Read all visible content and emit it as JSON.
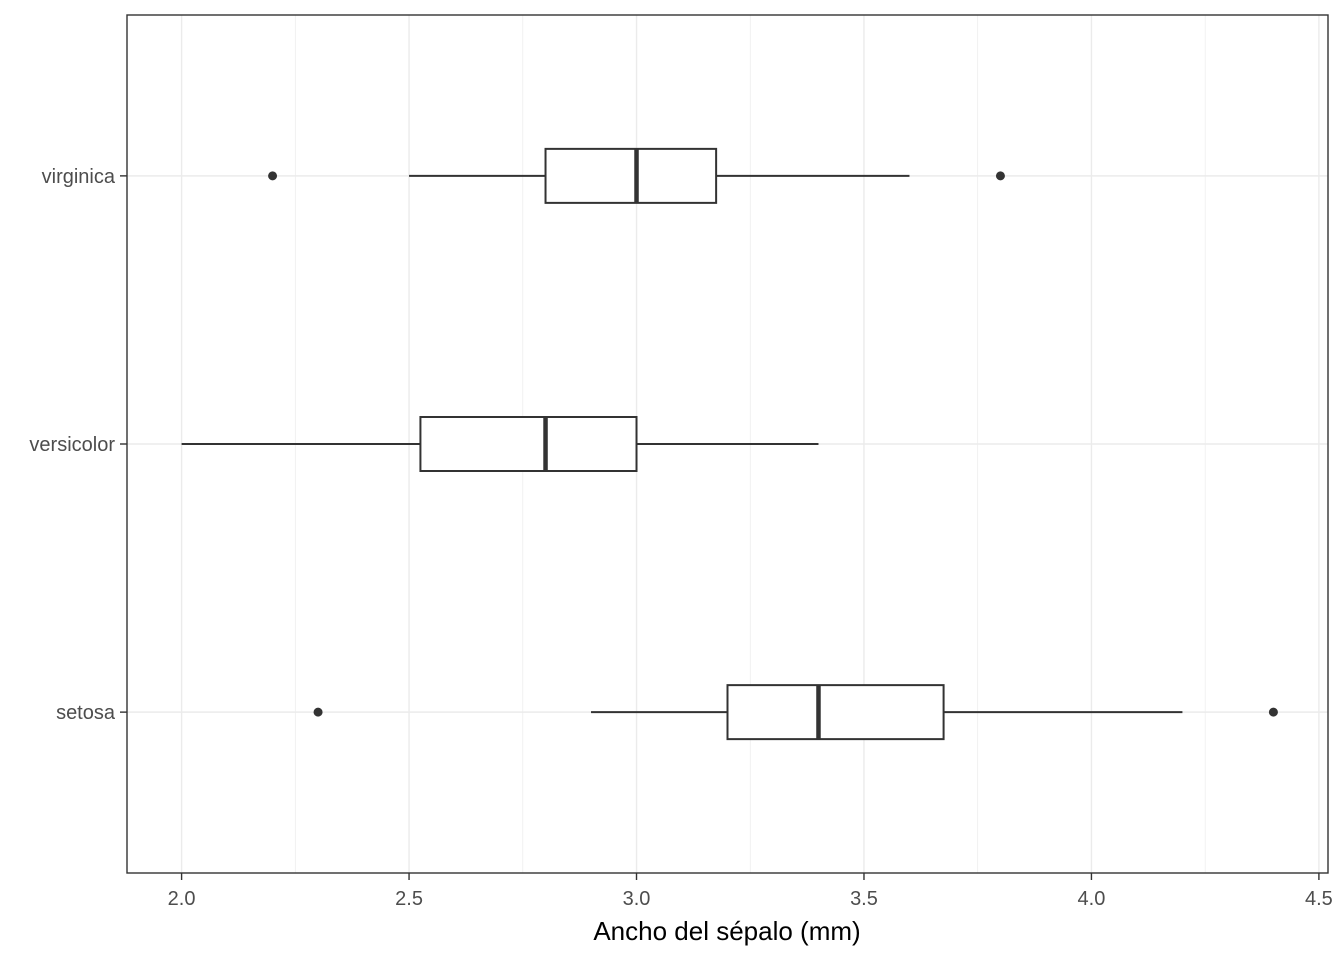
{
  "chart_data": {
    "type": "boxplot",
    "orientation": "horizontal",
    "title": "",
    "xlabel": "Ancho del sépalo (mm)",
    "ylabel": "",
    "xlim": [
      1.88,
      4.52
    ],
    "x_ticks": [
      "2.0",
      "2.5",
      "3.0",
      "3.5",
      "4.0",
      "4.5"
    ],
    "x_tick_values": [
      2.0,
      2.5,
      3.0,
      3.5,
      4.0,
      4.5
    ],
    "x_minor_values": [
      2.25,
      2.75,
      3.25,
      3.75,
      4.25
    ],
    "categories": [
      "setosa",
      "versicolor",
      "virginica"
    ],
    "grid": true,
    "colors": {
      "box_stroke": "#333333",
      "outlier": "#333333",
      "grid": "#ebebeb"
    },
    "series": [
      {
        "category": "setosa",
        "min": 2.9,
        "q1": 3.2,
        "median": 3.4,
        "q3": 3.675,
        "max": 4.2,
        "outliers": [
          2.3,
          4.4
        ]
      },
      {
        "category": "versicolor",
        "min": 2.0,
        "q1": 2.525,
        "median": 2.8,
        "q3": 3.0,
        "max": 3.4,
        "outliers": []
      },
      {
        "category": "virginica",
        "min": 2.5,
        "q1": 2.8,
        "median": 3.0,
        "q3": 3.175,
        "max": 3.6,
        "outliers": [
          2.2,
          3.8
        ]
      }
    ]
  }
}
